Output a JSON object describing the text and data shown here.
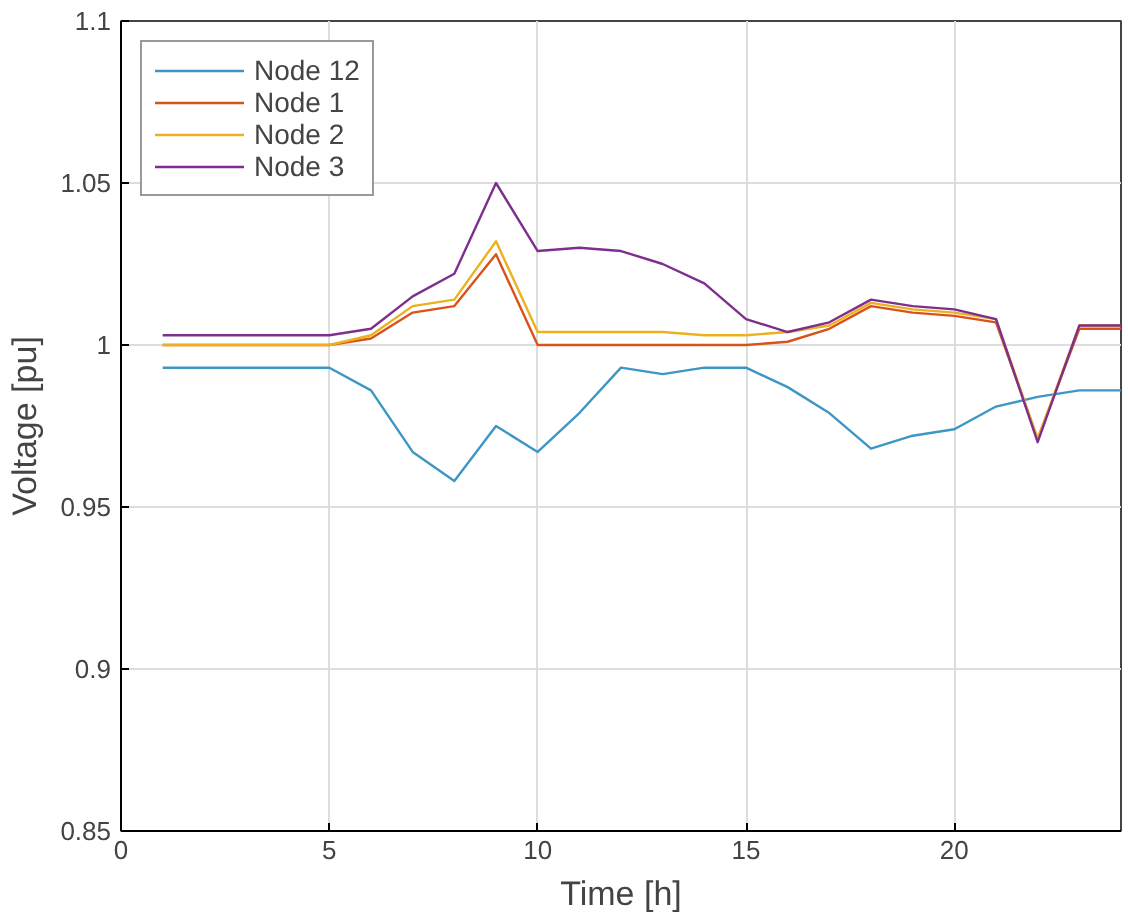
{
  "chart_data": {
    "type": "line",
    "xlabel": "Time [h]",
    "ylabel": "Voltage [pu]",
    "x": [
      1,
      2,
      3,
      4,
      5,
      6,
      7,
      8,
      9,
      10,
      11,
      12,
      13,
      14,
      15,
      16,
      17,
      18,
      19,
      20,
      21,
      22,
      23,
      24
    ],
    "series": [
      {
        "name": "Node 12",
        "color": "#3d96c4",
        "values": [
          0.993,
          0.993,
          0.993,
          0.993,
          0.993,
          0.986,
          0.967,
          0.958,
          0.975,
          0.967,
          0.979,
          0.993,
          0.991,
          0.993,
          0.993,
          0.987,
          0.979,
          0.968,
          0.972,
          0.974,
          0.981,
          0.984,
          0.986,
          0.986
        ]
      },
      {
        "name": "Node 1",
        "color": "#d95319",
        "values": [
          1.0,
          1.0,
          1.0,
          1.0,
          1.0,
          1.002,
          1.01,
          1.012,
          1.028,
          1.0,
          1.0,
          1.0,
          1.0,
          1.0,
          1.0,
          1.001,
          1.005,
          1.012,
          1.01,
          1.009,
          1.007,
          0.971,
          1.005,
          1.005
        ]
      },
      {
        "name": "Node 2",
        "color": "#edb120",
        "values": [
          1.0,
          1.0,
          1.0,
          1.0,
          1.0,
          1.003,
          1.012,
          1.014,
          1.032,
          1.004,
          1.004,
          1.004,
          1.004,
          1.003,
          1.003,
          1.004,
          1.006,
          1.013,
          1.011,
          1.01,
          1.008,
          0.971,
          1.006,
          1.006
        ]
      },
      {
        "name": "Node 3",
        "color": "#7e2f8e",
        "values": [
          1.003,
          1.003,
          1.003,
          1.003,
          1.003,
          1.005,
          1.015,
          1.022,
          1.05,
          1.029,
          1.03,
          1.029,
          1.025,
          1.019,
          1.008,
          1.004,
          1.007,
          1.014,
          1.012,
          1.011,
          1.008,
          0.97,
          1.006,
          1.006
        ]
      }
    ],
    "xlim": [
      0,
      24
    ],
    "ylim": [
      0.85,
      1.1
    ],
    "xticks": [
      0,
      5,
      10,
      15,
      20
    ],
    "yticks": [
      0.85,
      0.9,
      0.95,
      1,
      1.05,
      1.1
    ],
    "grid": true,
    "legend": "top left",
    "line_style": "solid"
  }
}
